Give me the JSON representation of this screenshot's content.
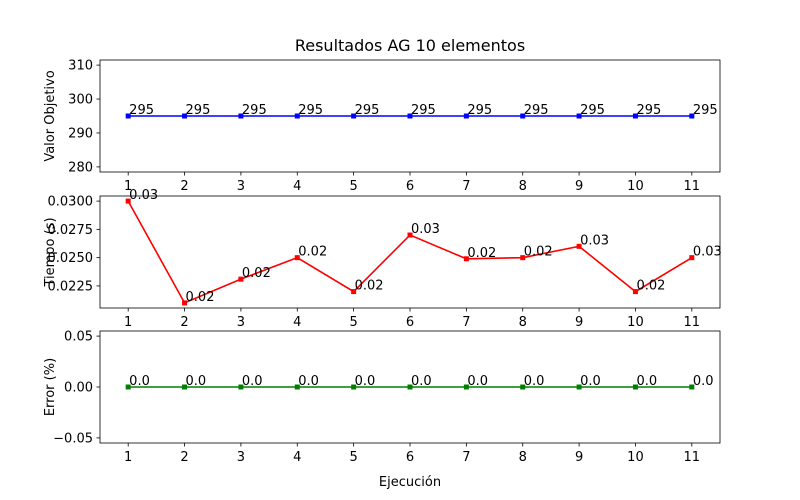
{
  "title": "Resultados AG 10 elementos",
  "xlabel": "Ejecución",
  "chart_data": [
    {
      "type": "line",
      "ylabel": "Valor Objetivo",
      "x": [
        1,
        2,
        3,
        4,
        5,
        6,
        7,
        8,
        9,
        10,
        11
      ],
      "values": [
        295,
        295,
        295,
        295,
        295,
        295,
        295,
        295,
        295,
        295,
        295
      ],
      "labels": [
        "295",
        "295",
        "295",
        "295",
        "295",
        "295",
        "295",
        "295",
        "295",
        "295",
        "295"
      ],
      "ylim": [
        278.5,
        311.5
      ],
      "yticks": [
        280,
        290,
        300,
        310
      ],
      "ytick_labels": [
        "280",
        "290",
        "300",
        "310"
      ],
      "xticks": [
        "1",
        "2",
        "3",
        "4",
        "5",
        "6",
        "7",
        "8",
        "9",
        "10",
        "11"
      ],
      "color": "#0000ff",
      "grid": false
    },
    {
      "type": "line",
      "ylabel": "Tiempo (s)",
      "x": [
        1,
        2,
        3,
        4,
        5,
        6,
        7,
        8,
        9,
        10,
        11
      ],
      "values": [
        0.03,
        0.021,
        0.0231,
        0.025,
        0.022,
        0.027,
        0.0249,
        0.025,
        0.026,
        0.022,
        0.025
      ],
      "labels": [
        "0.03",
        "0.02",
        "0.02",
        "0.02",
        "0.02",
        "0.03",
        "0.02",
        "0.02",
        "0.03",
        "0.02",
        "0.03"
      ],
      "ylim": [
        0.02055,
        0.03045
      ],
      "yticks": [
        0.0225,
        0.025,
        0.0275,
        0.03
      ],
      "ytick_labels": [
        "0.0225",
        "0.0250",
        "0.0275",
        "0.0300"
      ],
      "xticks": [
        "1",
        "2",
        "3",
        "4",
        "5",
        "6",
        "7",
        "8",
        "9",
        "10",
        "11"
      ],
      "color": "#ff0000",
      "grid": false
    },
    {
      "type": "line",
      "ylabel": "Error (%)",
      "x": [
        1,
        2,
        3,
        4,
        5,
        6,
        7,
        8,
        9,
        10,
        11
      ],
      "values": [
        0,
        0,
        0,
        0,
        0,
        0,
        0,
        0,
        0,
        0,
        0
      ],
      "labels": [
        "0.0",
        "0.0",
        "0.0",
        "0.0",
        "0.0",
        "0.0",
        "0.0",
        "0.0",
        "0.0",
        "0.0",
        "0.0"
      ],
      "ylim": [
        -0.055,
        0.055
      ],
      "yticks": [
        -0.05,
        0,
        0.05
      ],
      "ytick_labels": [
        "−0.05",
        "0.00",
        "0.05"
      ],
      "xticks": [
        "1",
        "2",
        "3",
        "4",
        "5",
        "6",
        "7",
        "8",
        "9",
        "10",
        "11"
      ],
      "color": "#008000",
      "grid": false
    }
  ]
}
